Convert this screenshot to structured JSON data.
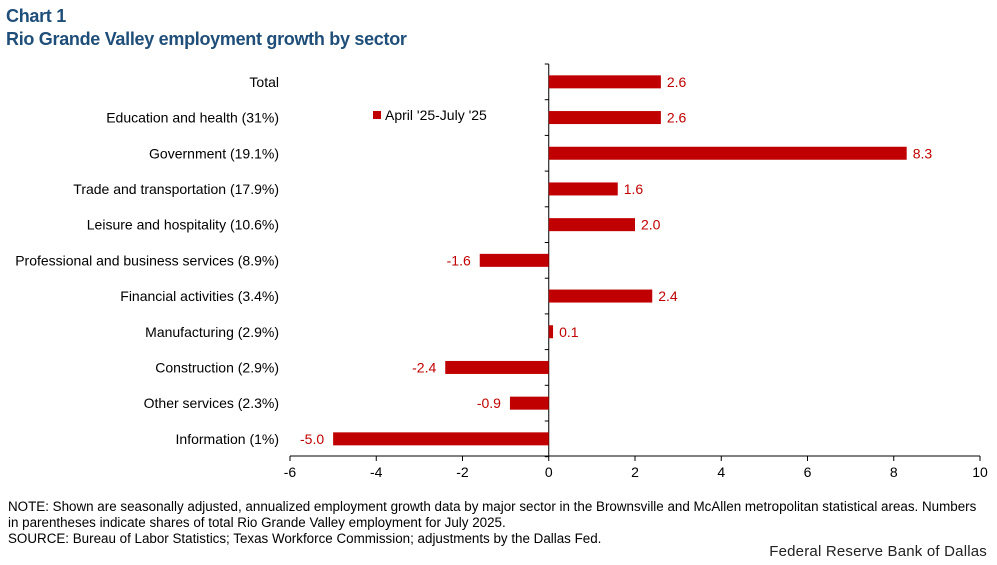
{
  "header": {
    "chart_number": "Chart 1",
    "title": "Rio Grande Valley employment growth by sector"
  },
  "colors": {
    "bar": "#c00000",
    "title": "#1f4e79",
    "label": "#c00000"
  },
  "chart_data": {
    "type": "bar",
    "orientation": "horizontal",
    "title": "Rio Grande Valley employment growth by sector",
    "categories": [
      "Total",
      "Education and health (31%)",
      "Government (19.1%)",
      "Trade and transportation (17.9%)",
      "Leisure and hospitality (10.6%)",
      "Professional and business services (8.9%)",
      "Financial activities (3.4%)",
      "Manufacturing (2.9%)",
      "Construction (2.9%)",
      "Other services (2.3%)",
      "Information (1%)"
    ],
    "series": [
      {
        "name": "April '25-July '25",
        "values": [
          2.6,
          2.6,
          8.3,
          1.6,
          2.0,
          -1.6,
          2.4,
          0.1,
          -2.4,
          -0.9,
          -5.0
        ],
        "labels": [
          "2.6",
          "2.6",
          "8.3",
          "1.6",
          "2.0",
          "-1.6",
          "2.4",
          "0.1",
          "-2.4",
          "-0.9",
          "-5.0"
        ]
      }
    ],
    "xlim": [
      -6,
      10
    ],
    "xticks": [
      -6,
      -4,
      -2,
      0,
      2,
      4,
      6,
      8,
      10
    ],
    "xtick_labels": [
      "-6",
      "-4",
      "-2",
      "0",
      "2",
      "4",
      "6",
      "8",
      "10"
    ],
    "xlabel": "",
    "ylabel": "",
    "grid": false,
    "legend_position": "top-left"
  },
  "notes": {
    "note": "NOTE: Shown are seasonally adjusted, annualized employment growth data by major sector in the Brownsville and McAllen metropolitan statistical areas. Numbers in parentheses indicate shares of total Rio Grande Valley employment for July 2025.",
    "source": "SOURCE: Bureau of Labor Statistics; Texas Workforce Commission; adjustments by the Dallas Fed."
  },
  "credit": "Federal Reserve Bank of Dallas"
}
